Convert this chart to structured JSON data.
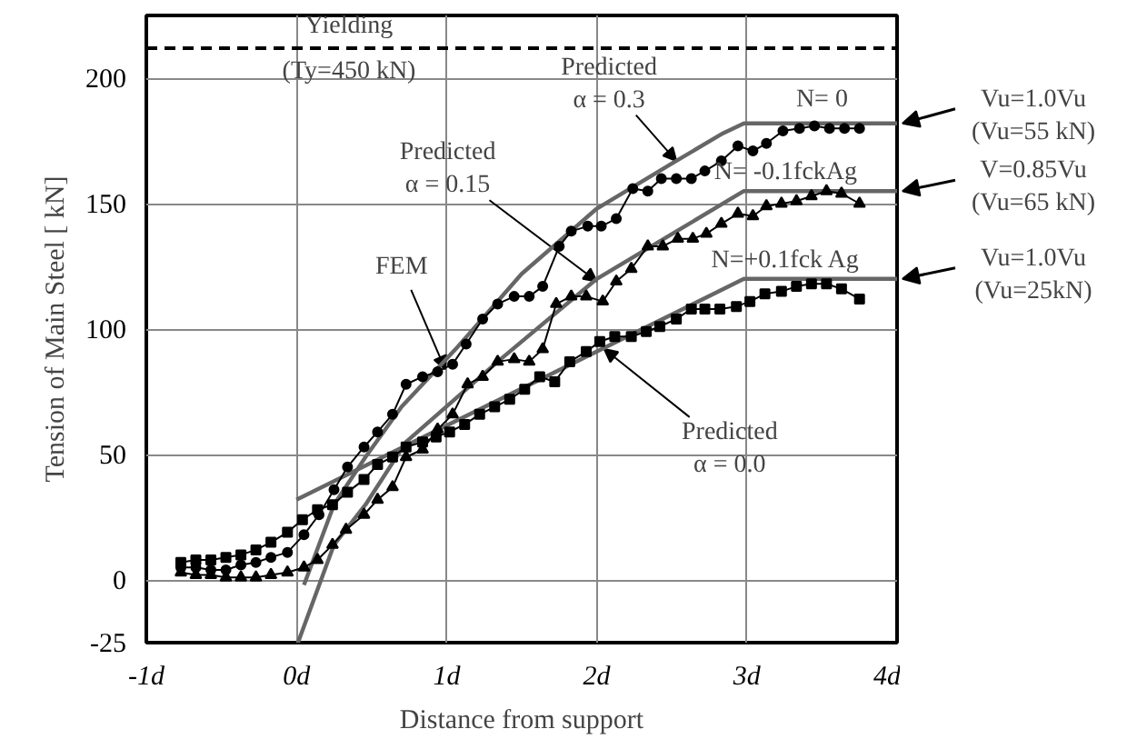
{
  "chart_data": {
    "type": "line",
    "xlabel": "Distance from support",
    "ylabel": "Tension of Main Steel [ kN]",
    "xlim": [
      -1,
      4
    ],
    "ylim": [
      -25,
      225
    ],
    "xticks": [
      {
        "value": -1,
        "label": "-1d"
      },
      {
        "value": 0,
        "label": "0d"
      },
      {
        "value": 1,
        "label": "1d"
      },
      {
        "value": 2,
        "label": "2d"
      },
      {
        "value": 3,
        "label": "3d"
      },
      {
        "value": 4,
        "label": "4d"
      }
    ],
    "yticks": [
      -25,
      0,
      50,
      100,
      150,
      200
    ],
    "grid": true,
    "series": [
      {
        "color": "#666666",
        "marker": "none",
        "x": [
          0.05,
          0.25,
          0.46,
          0.7,
          1.06,
          1.5,
          2.0,
          2.5,
          2.84,
          2.98,
          4
        ],
        "values": [
          -2,
          30,
          49,
          69,
          92,
          122,
          148,
          166,
          178,
          182,
          182
        ]
      },
      {
        "color": "#666666",
        "marker": "none",
        "x": [
          0.01,
          0.25,
          0.46,
          0.73,
          1.34,
          2.0,
          2.98,
          4
        ],
        "values": [
          -25,
          14,
          30,
          55,
          87,
          120,
          155,
          155
        ]
      },
      {
        "color": "#666666",
        "marker": "none",
        "x": [
          0,
          2.98,
          4
        ],
        "values": [
          32,
          120,
          120
        ]
      },
      {
        "color": "#000000",
        "marker": "circle",
        "x": [
          -0.77,
          -0.67,
          -0.57,
          -0.47,
          -0.37,
          -0.27,
          -0.17,
          -0.06,
          0.05,
          0.15,
          0.25,
          0.34,
          0.45,
          0.54,
          0.64,
          0.73,
          0.84,
          0.94,
          1.04,
          1.13,
          1.24,
          1.34,
          1.45,
          1.55,
          1.64,
          1.75,
          1.83,
          1.94,
          2.03,
          2.13,
          2.24,
          2.34,
          2.43,
          2.53,
          2.63,
          2.72,
          2.83,
          2.94,
          3.04,
          3.13,
          3.24,
          3.35,
          3.45,
          3.55,
          3.65,
          3.75
        ],
        "values": [
          5,
          5,
          4,
          4,
          6,
          7,
          9,
          11,
          18,
          26,
          36,
          45,
          53,
          59,
          66,
          78,
          81,
          83,
          86,
          94,
          104,
          110,
          113,
          113,
          117,
          133,
          139,
          141,
          141,
          144,
          156,
          155,
          160,
          160,
          160,
          163,
          167,
          173,
          171,
          174,
          179,
          180,
          181,
          180,
          180,
          180
        ]
      },
      {
        "color": "#000000",
        "marker": "triangle",
        "x": [
          -0.77,
          -0.67,
          -0.57,
          -0.47,
          -0.37,
          -0.27,
          -0.17,
          -0.06,
          0.05,
          0.14,
          0.24,
          0.33,
          0.45,
          0.54,
          0.64,
          0.73,
          0.84,
          0.94,
          1.04,
          1.14,
          1.24,
          1.34,
          1.45,
          1.55,
          1.64,
          1.73,
          1.83,
          1.93,
          2.04,
          2.13,
          2.23,
          2.34,
          2.44,
          2.54,
          2.64,
          2.73,
          2.83,
          2.94,
          3.04,
          3.13,
          3.23,
          3.33,
          3.43,
          3.53,
          3.63,
          3.75
        ],
        "values": [
          3,
          2,
          2,
          1,
          1,
          1,
          2,
          3,
          5,
          8,
          14,
          20,
          26,
          32,
          37,
          49,
          52,
          60,
          66,
          78,
          81,
          87,
          88,
          87,
          92,
          110,
          113,
          113,
          111,
          119,
          124,
          133,
          133,
          136,
          136,
          138,
          142,
          146,
          145,
          149,
          150,
          151,
          153,
          155,
          154,
          150
        ]
      },
      {
        "color": "#000000",
        "marker": "square",
        "x": [
          -0.77,
          -0.67,
          -0.57,
          -0.47,
          -0.37,
          -0.27,
          -0.17,
          -0.06,
          0.04,
          0.14,
          0.24,
          0.34,
          0.45,
          0.54,
          0.64,
          0.73,
          0.84,
          0.93,
          1.02,
          1.12,
          1.22,
          1.32,
          1.42,
          1.52,
          1.62,
          1.72,
          1.82,
          1.93,
          2.02,
          2.12,
          2.23,
          2.33,
          2.42,
          2.53,
          2.63,
          2.72,
          2.82,
          2.93,
          3.02,
          3.12,
          3.23,
          3.33,
          3.43,
          3.53,
          3.63,
          3.75
        ],
        "values": [
          7,
          8,
          8,
          9,
          10,
          12,
          15,
          19,
          24,
          28,
          30,
          35,
          40,
          46,
          49,
          53,
          55,
          57,
          59,
          62,
          66,
          69,
          72,
          76,
          81,
          79,
          87,
          91,
          95,
          97,
          97,
          99,
          101,
          104,
          108,
          108,
          108,
          109,
          111,
          114,
          115,
          117,
          118,
          118,
          116,
          112
        ]
      }
    ],
    "ref_lines": [
      {
        "axis": "y",
        "value": 212,
        "label": "Yielding",
        "line_style": "dashed",
        "color": "#000000"
      }
    ],
    "annotations": [
      "(Ty=450 kN)",
      {
        "text": "Predicted\nα = 0.3",
        "x": 2.53,
        "y": 167
      },
      {
        "text": "Predicted\nα = 0.15",
        "x": 2.0,
        "y": 119
      },
      {
        "text": "FEM",
        "x": 0.99,
        "y": 84
      },
      {
        "text": "Predicted\nα = 0.0",
        "x": 2.05,
        "y": 92
      },
      {
        "text": "N= 0",
        "x": 3.5,
        "y": 182
      },
      {
        "text": "N= -0.1fckAg",
        "x": 3.5,
        "y": 155
      },
      {
        "text": "N=+0.1fck Ag",
        "x": 3.5,
        "y": 120
      },
      {
        "text": "Vu=1.0Vu\n(Vu=55 kN)",
        "x": 4,
        "y": 182
      },
      {
        "text": "V=0.85Vu\n(Vu=65 kN)",
        "x": 4,
        "y": 155
      },
      {
        "text": "Vu=1.0Vu\n(Vu=25kN)",
        "x": 4,
        "y": 120
      }
    ]
  }
}
